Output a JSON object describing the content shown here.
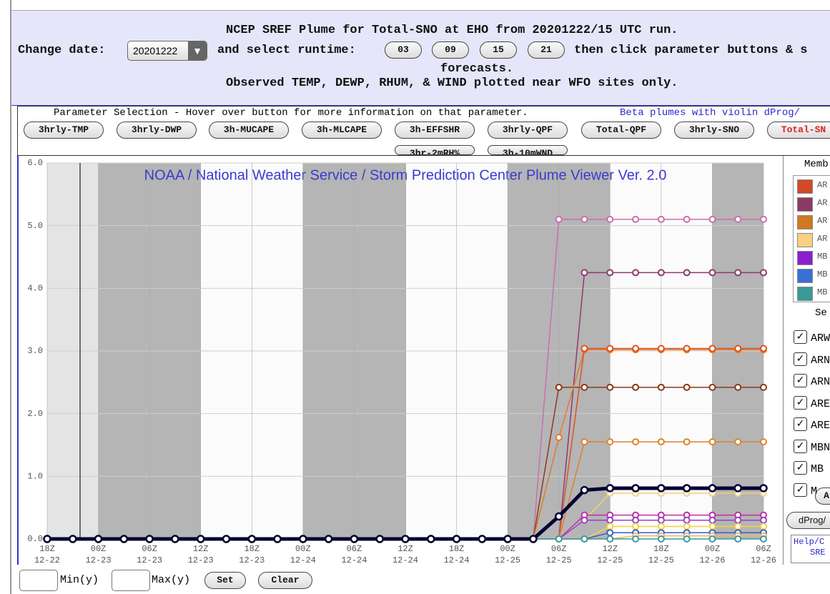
{
  "header": {
    "title": "NCEP SREF Plume for Total-SNO at EHO from 20201222/15 UTC run.",
    "change_date": "Change date:",
    "date_value": "20201222",
    "select_runtime": "and select runtime:",
    "runtimes": [
      "03",
      "09",
      "15",
      "21"
    ],
    "then_click": "then click parameter buttons & s",
    "forecasts": "forecasts.",
    "observed": "Observed TEMP, DEWP, RHUM, & WIND plotted near WFO sites only."
  },
  "parameters": {
    "intro": "Parameter Selection - Hover over button for more information on that parameter.",
    "beta": "Beta plumes with violin dProg/",
    "buttons": [
      "3hrly-TMP",
      "3hrly-DWP",
      "3h-MUCAPE",
      "3h-MLCAPE",
      "3h-EFFSHR",
      "3hrly-QPF",
      "Total-QPF",
      "3hrly-SNO",
      "Total-SN"
    ],
    "buttons_row2": [
      "3hr-2mRH%",
      "3h-10mWND"
    ]
  },
  "chart_data": {
    "type": "line",
    "title": "NOAA / National Weather Service / Storm Prediction Center Plume Viewer Ver. 2.0",
    "x_hour_labels": [
      "18Z",
      null,
      "00Z",
      null,
      "06Z",
      null,
      "12Z",
      null,
      "18Z",
      null,
      "00Z",
      null,
      "06Z",
      null,
      "12Z",
      null,
      "18Z",
      null,
      "00Z",
      null,
      "06Z",
      null,
      "12Z",
      null,
      "18Z",
      null,
      "00Z",
      null,
      "06Z"
    ],
    "x_date_labels": [
      "12-22",
      null,
      "12-23",
      null,
      "12-23",
      null,
      "12-23",
      null,
      "12-23",
      null,
      "12-24",
      null,
      "12-24",
      null,
      "12-24",
      null,
      "12-24",
      null,
      "12-25",
      null,
      "12-25",
      null,
      "12-25",
      null,
      "12-25",
      null,
      "12-26",
      null,
      "12-26"
    ],
    "ylim": [
      0,
      6
    ],
    "yticks": [
      {
        "value": 0,
        "label": "0.0"
      },
      {
        "value": 1,
        "label": "1.0"
      },
      {
        "value": 2,
        "label": "2.0"
      },
      {
        "value": 3,
        "label": "3.0"
      },
      {
        "value": 4,
        "label": "4.0"
      },
      {
        "value": 5,
        "label": "5.0"
      },
      {
        "value": 6,
        "label": "6.0"
      }
    ],
    "grid": true,
    "series": [
      {
        "color": "#c86fb0",
        "values": [
          0,
          0,
          0,
          0,
          0,
          0,
          0,
          0,
          0,
          0,
          0,
          0,
          0,
          0,
          0,
          0,
          0,
          0,
          0,
          0,
          5.1,
          5.1,
          5.1,
          5.1,
          5.1,
          5.1,
          5.1,
          5.1,
          5.1
        ]
      },
      {
        "color": "#8e3b6e",
        "values": [
          0,
          0,
          0,
          0,
          0,
          0,
          0,
          0,
          0,
          0,
          0,
          0,
          0,
          0,
          0,
          0,
          0,
          0,
          0,
          0,
          0,
          4.25,
          4.25,
          4.25,
          4.25,
          4.25,
          4.25,
          4.25,
          4.25
        ]
      },
      {
        "color": "#8b3a1a",
        "values": [
          0,
          0,
          0,
          0,
          0,
          0,
          0,
          0,
          0,
          0,
          0,
          0,
          0,
          0,
          0,
          0,
          0,
          0,
          0,
          0,
          2.42,
          2.42,
          2.42,
          2.42,
          2.42,
          2.42,
          2.42,
          2.42,
          2.42
        ]
      },
      {
        "color": "#e07b2a",
        "values": [
          0,
          0,
          0,
          0,
          0,
          0,
          0,
          0,
          0,
          0,
          0,
          0,
          0,
          0,
          0,
          0,
          0,
          0,
          0,
          0,
          1.62,
          3.02,
          3.02,
          3.02,
          3.02,
          3.02,
          3.02,
          3.02,
          3.02
        ]
      },
      {
        "color": "#e0521f",
        "values": [
          0,
          0,
          0,
          0,
          0,
          0,
          0,
          0,
          0,
          0,
          0,
          0,
          0,
          0,
          0,
          0,
          0,
          0,
          0,
          0,
          0,
          3.04,
          3.04,
          3.04,
          3.04,
          3.04,
          3.04,
          3.04,
          3.04
        ]
      },
      {
        "color": "#d9832b",
        "values": [
          0,
          0,
          0,
          0,
          0,
          0,
          0,
          0,
          0,
          0,
          0,
          0,
          0,
          0,
          0,
          0,
          0,
          0,
          0,
          0,
          0,
          1.55,
          1.55,
          1.55,
          1.55,
          1.55,
          1.55,
          1.55,
          1.55
        ]
      },
      {
        "color": "#f5cf7a",
        "values": [
          0,
          0,
          0,
          0,
          0,
          0,
          0,
          0,
          0,
          0,
          0,
          0,
          0,
          0,
          0,
          0,
          0,
          0,
          0,
          0,
          0,
          0.3,
          0.73,
          0.73,
          0.73,
          0.73,
          0.73,
          0.73,
          0.73
        ]
      },
      {
        "color": "#c02fa0",
        "values": [
          0,
          0,
          0,
          0,
          0,
          0,
          0,
          0,
          0,
          0,
          0,
          0,
          0,
          0,
          0,
          0,
          0,
          0,
          0,
          0,
          0,
          0.38,
          0.38,
          0.38,
          0.38,
          0.38,
          0.38,
          0.38,
          0.38
        ]
      },
      {
        "color": "#9b3fc9",
        "values": [
          0,
          0,
          0,
          0,
          0,
          0,
          0,
          0,
          0,
          0,
          0,
          0,
          0,
          0,
          0,
          0,
          0,
          0,
          0,
          0,
          0,
          0.3,
          0.3,
          0.3,
          0.3,
          0.3,
          0.3,
          0.3,
          0.3
        ]
      },
      {
        "color": "#f2d53c",
        "values": [
          0,
          0,
          0,
          0,
          0,
          0,
          0,
          0,
          0,
          0,
          0,
          0,
          0,
          0,
          0,
          0,
          0,
          0,
          0,
          0,
          0,
          0,
          0.2,
          0.2,
          0.2,
          0.2,
          0.2,
          0.2,
          0.2
        ]
      },
      {
        "color": "#3b5fcc",
        "values": [
          0,
          0,
          0,
          0,
          0,
          0,
          0,
          0,
          0,
          0,
          0,
          0,
          0,
          0,
          0,
          0,
          0,
          0,
          0,
          0,
          0,
          0,
          0.1,
          0.1,
          0.1,
          0.1,
          0.1,
          0.1,
          0.1
        ]
      },
      {
        "color": "#e8b96a",
        "values": [
          0,
          0,
          0,
          0,
          0,
          0,
          0,
          0,
          0,
          0,
          0,
          0,
          0,
          0,
          0,
          0,
          0,
          0,
          0,
          0,
          0,
          0,
          0,
          0.05,
          0.05,
          0.05,
          0.05,
          0.05,
          0.05
        ]
      },
      {
        "color": "#3a9a98",
        "values": [
          0,
          0,
          0,
          0,
          0,
          0,
          0,
          0,
          0,
          0,
          0,
          0,
          0,
          0,
          0,
          0,
          0,
          0,
          0,
          0,
          0,
          0,
          0,
          0,
          0,
          0,
          0,
          0,
          0
        ]
      },
      {
        "color": "#000033",
        "values": [
          0,
          0,
          0,
          0,
          0,
          0,
          0,
          0,
          0,
          0,
          0,
          0,
          0,
          0,
          0,
          0,
          0,
          0,
          0,
          0.0,
          0.36,
          0.78,
          0.81,
          0.81,
          0.81,
          0.81,
          0.81,
          0.81,
          0.81
        ]
      }
    ]
  },
  "side_panel": {
    "members_title": "Memb",
    "legend": [
      {
        "label": "AR",
        "color": "#d2492a"
      },
      {
        "label": "AR",
        "color": "#8b3a62"
      },
      {
        "label": "AR",
        "color": "#d2781f"
      },
      {
        "label": "AR",
        "color": "#f7cf85"
      },
      {
        "label": "MB",
        "color": "#8a1fd0"
      },
      {
        "label": "MB",
        "color": "#3a6fd8"
      },
      {
        "label": "MB",
        "color": "#3a9a98"
      }
    ],
    "select_title": "Se",
    "checkboxes": [
      "ARW",
      "ARN",
      "ARN",
      "ARE",
      "ARE",
      "MBN",
      "MB",
      "M"
    ],
    "a_button": "A",
    "dprog_button": "dProg/",
    "help_line1": "Help/C",
    "help_line2": "SRE"
  },
  "footer": {
    "min_label": "Min(y)",
    "max_label": "Max(y)",
    "set": "Set",
    "clear": "Clear"
  }
}
